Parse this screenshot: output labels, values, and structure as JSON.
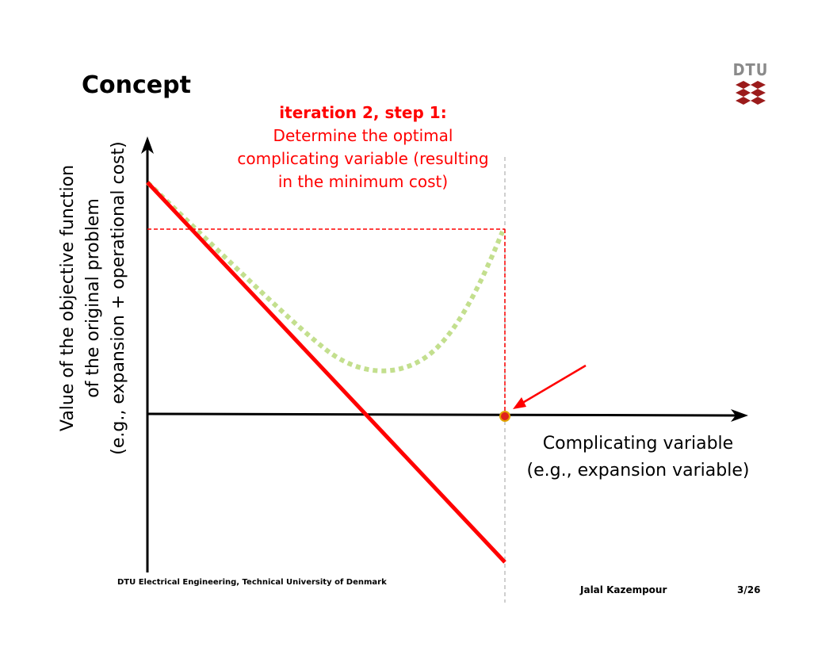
{
  "slide": {
    "title": "Concept",
    "logo_text": "DTU",
    "note_heading": "iteration 2, step 1:",
    "note_lines": [
      "Determine the optimal",
      "complicating variable (resulting",
      "in the minimum cost)"
    ],
    "y_axis_lines": [
      "Value of the objective function",
      "of the original problem",
      "(e.g., expansion + operational cost)"
    ],
    "x_axis_lines": [
      "Complicating variable",
      "(e.g., expansion variable)"
    ],
    "footer": {
      "institution": "DTU Electrical Engineering, Technical University of Denmark",
      "author": "Jalal Kazempour",
      "page": "3/26"
    }
  },
  "colors": {
    "accent_red": "#ff0000",
    "curve_green": "#c3df8e",
    "guide_gray": "#bfbfbf",
    "logo_red": "#9b1b1b",
    "logo_gray": "#8a8a8a"
  }
}
